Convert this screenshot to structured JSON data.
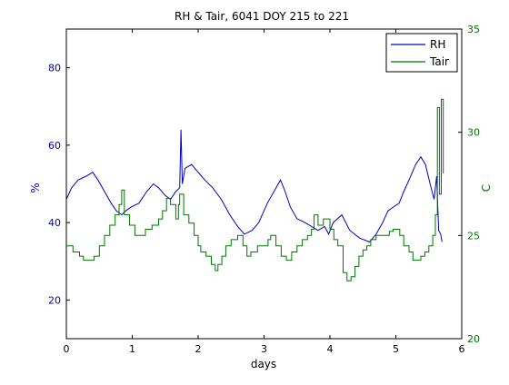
{
  "colors": {
    "rh": "#0000cc",
    "tair": "#007700",
    "axis": "#000000",
    "rh_axis": "#0000bb",
    "tair_axis": "#007700"
  },
  "chart_data": {
    "type": "line",
    "title": "RH & Tair, 6041 DOY 215 to 221",
    "xlabel": "days",
    "ylabel_left": "%",
    "ylabel_right": "C",
    "xlim": [
      0,
      6
    ],
    "ylim_left": [
      10,
      90
    ],
    "ylim_right": [
      20,
      35
    ],
    "xticks": [
      "0",
      "1",
      "2",
      "3",
      "4",
      "5",
      "6"
    ],
    "yticks_left": [
      "20",
      "40",
      "60",
      "80"
    ],
    "yticks_right": [
      "20",
      "25",
      "30",
      "35"
    ],
    "grid": false,
    "legend_position": "top-right",
    "series": [
      {
        "name": "RH",
        "axis": "left",
        "x": [
          0.0,
          0.08,
          0.18,
          0.3,
          0.4,
          0.48,
          0.58,
          0.68,
          0.76,
          0.84,
          0.9,
          0.98,
          1.1,
          1.22,
          1.32,
          1.4,
          1.5,
          1.58,
          1.66,
          1.72,
          1.74,
          1.76,
          1.8,
          1.9,
          2.0,
          2.1,
          2.22,
          2.35,
          2.48,
          2.6,
          2.7,
          2.82,
          2.92,
          3.05,
          3.15,
          3.25,
          3.32,
          3.4,
          3.5,
          3.62,
          3.72,
          3.82,
          3.92,
          3.98,
          4.05,
          4.18,
          4.3,
          4.45,
          4.6,
          4.7,
          4.8,
          4.88,
          4.96,
          5.05,
          5.12,
          5.2,
          5.3,
          5.38,
          5.45,
          5.52,
          5.58,
          5.62,
          5.65,
          5.68,
          5.7
        ],
        "values": [
          46,
          49,
          51,
          52,
          53,
          51,
          48,
          45,
          43,
          42,
          43,
          44,
          45,
          48,
          50,
          49,
          47,
          46,
          48,
          49,
          64,
          50,
          54,
          55,
          53,
          51,
          49,
          46,
          42,
          39,
          37,
          38,
          40,
          45,
          48,
          51,
          48,
          44,
          41,
          40,
          39,
          38,
          39,
          37,
          40,
          42,
          38,
          36,
          35,
          37,
          40,
          43,
          44,
          45,
          48,
          51,
          55,
          57,
          55,
          50,
          46,
          52,
          38,
          37,
          35
        ]
      },
      {
        "name": "Tair",
        "axis": "right",
        "x": [
          0.0,
          0.1,
          0.2,
          0.26,
          0.34,
          0.42,
          0.5,
          0.58,
          0.66,
          0.74,
          0.8,
          0.84,
          0.88,
          0.96,
          1.04,
          1.12,
          1.2,
          1.3,
          1.4,
          1.46,
          1.52,
          1.58,
          1.66,
          1.7,
          1.72,
          1.78,
          1.86,
          1.94,
          2.0,
          2.04,
          2.12,
          2.2,
          2.26,
          2.3,
          2.36,
          2.42,
          2.5,
          2.6,
          2.68,
          2.74,
          2.8,
          2.9,
          3.0,
          3.06,
          3.1,
          3.18,
          3.26,
          3.34,
          3.42,
          3.5,
          3.58,
          3.66,
          3.72,
          3.76,
          3.82,
          3.9,
          4.0,
          4.06,
          4.12,
          4.2,
          4.26,
          4.32,
          4.38,
          4.44,
          4.5,
          4.56,
          4.62,
          4.7,
          4.8,
          4.9,
          4.96,
          5.0,
          5.06,
          5.12,
          5.2,
          5.26,
          5.32,
          5.38,
          5.44,
          5.5,
          5.56,
          5.6,
          5.63,
          5.66,
          5.69,
          5.72
        ],
        "values": [
          24.5,
          24.2,
          24.0,
          23.8,
          23.8,
          24.0,
          24.5,
          25.0,
          25.5,
          26.0,
          26.5,
          27.2,
          26.0,
          25.5,
          25.0,
          25.0,
          25.3,
          25.5,
          25.8,
          26.2,
          26.8,
          26.5,
          25.8,
          26.5,
          27.0,
          26.0,
          25.6,
          25.0,
          24.5,
          24.2,
          24.0,
          23.6,
          23.3,
          23.6,
          24.0,
          24.5,
          24.8,
          25.0,
          24.5,
          24.0,
          24.2,
          24.5,
          24.5,
          24.8,
          25.0,
          24.5,
          24.0,
          23.8,
          24.2,
          24.5,
          24.8,
          25.0,
          25.3,
          26.0,
          25.5,
          25.8,
          25.3,
          24.8,
          24.5,
          23.2,
          22.8,
          23.0,
          23.5,
          24.0,
          24.3,
          24.5,
          24.8,
          25.0,
          25.0,
          25.2,
          25.3,
          25.3,
          25.0,
          24.5,
          24.2,
          23.8,
          23.8,
          24.0,
          24.2,
          24.5,
          25.0,
          26.0,
          31.2,
          27.0,
          31.6,
          28.0
        ]
      }
    ]
  }
}
